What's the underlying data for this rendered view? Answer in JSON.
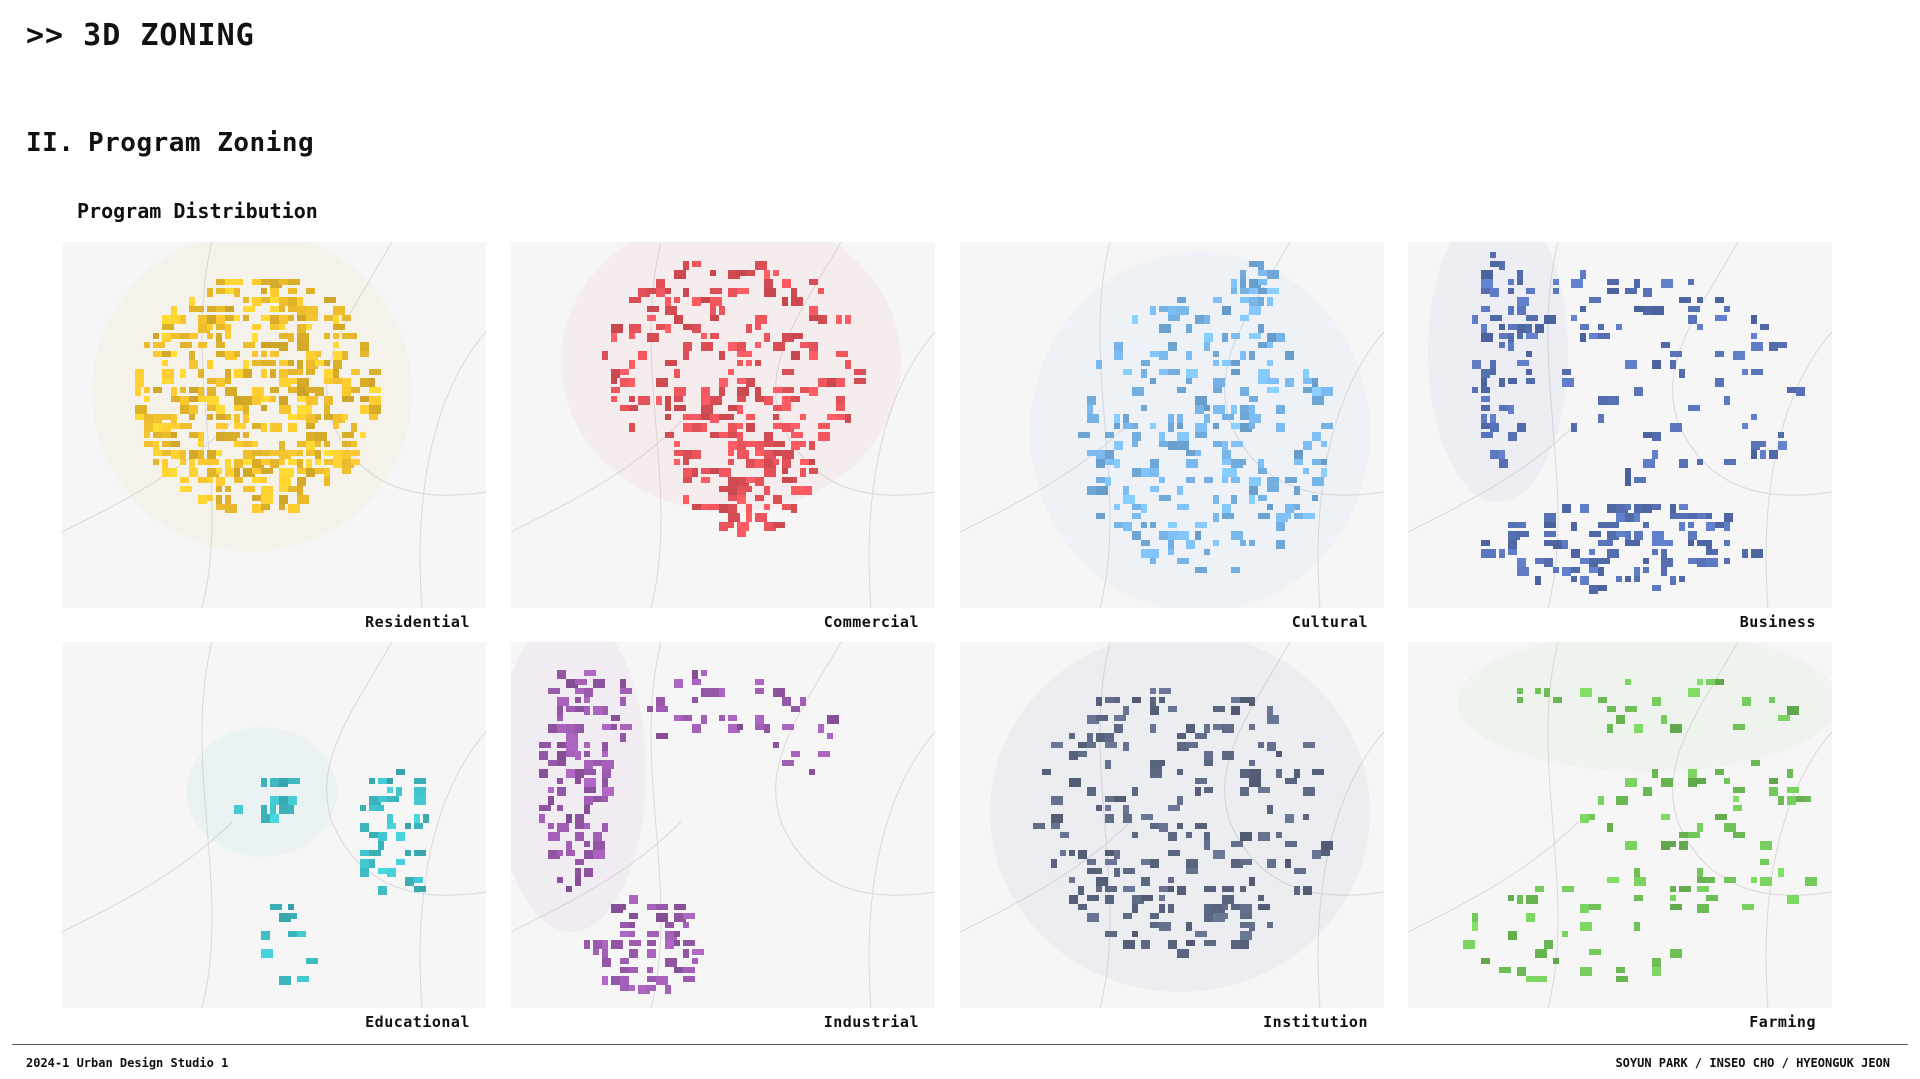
{
  "header": {
    "title": ">> 3D ZONING"
  },
  "section": {
    "numeral": "II.",
    "title": "Program Zoning"
  },
  "subsection": {
    "title": "Program Distribution"
  },
  "panels": [
    {
      "label": "Residential",
      "color": "#f2c12e",
      "icon": "residential-zoning-map"
    },
    {
      "label": "Commercial",
      "color": "#e8535a",
      "icon": "commercial-zoning-map"
    },
    {
      "label": "Cultural",
      "color": "#78b6ea",
      "icon": "cultural-zoning-map"
    },
    {
      "label": "Business",
      "color": "#5772b6",
      "icon": "business-zoning-map"
    },
    {
      "label": "Educational",
      "color": "#3fbcc4",
      "icon": "educational-zoning-map"
    },
    {
      "label": "Industrial",
      "color": "#9a5aad",
      "icon": "industrial-zoning-map"
    },
    {
      "label": "Institution",
      "color": "#5d6883",
      "icon": "institution-zoning-map"
    },
    {
      "label": "Farming",
      "color": "#72c45a",
      "icon": "farming-zoning-map"
    }
  ],
  "footer": {
    "left": "2024-1 Urban Design Studio 1",
    "right": "SOYUN PARK / INSEO CHO / HYEONGUK JEON"
  }
}
